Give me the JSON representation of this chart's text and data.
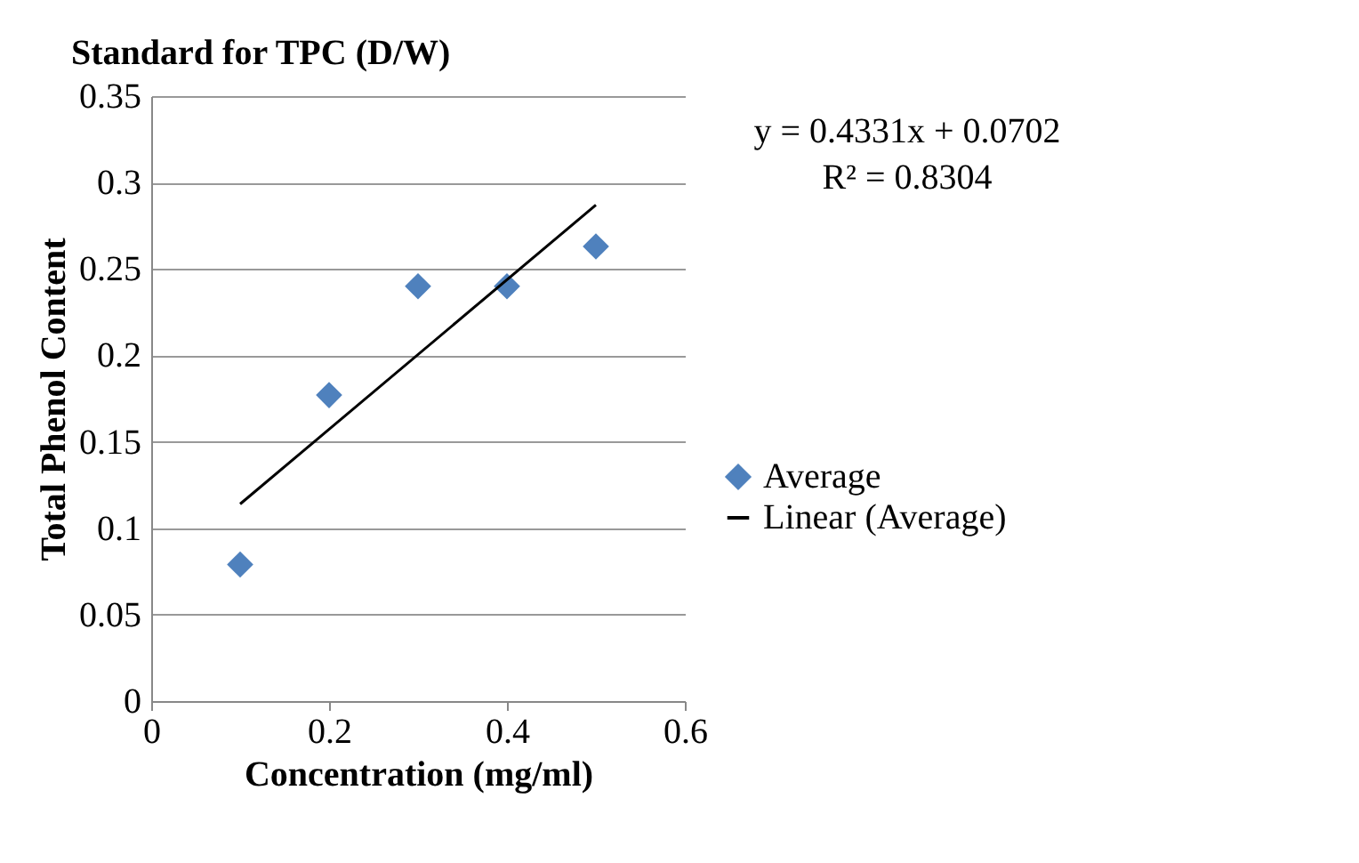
{
  "chart_data": {
    "type": "scatter",
    "title": "Standard for TPC (D/W)",
    "xlabel": "Concentration (mg/ml)",
    "ylabel": "Total Phenol Content",
    "x": [
      0.1,
      0.2,
      0.3,
      0.4,
      0.5
    ],
    "series": [
      {
        "name": "Average",
        "color": "#4f81bd",
        "marker": "diamond",
        "values": [
          0.079,
          0.177,
          0.24,
          0.24,
          0.263
        ]
      },
      {
        "name": "Linear (Average)",
        "type": "line",
        "color": "#000000",
        "x": [
          0.1,
          0.5
        ],
        "values": [
          0.114,
          0.287
        ]
      }
    ],
    "xlim": [
      0,
      0.6
    ],
    "xticks": [
      0,
      0.2,
      0.4,
      0.6
    ],
    "ylim": [
      0,
      0.35
    ],
    "yticks": [
      0,
      0.05,
      0.1,
      0.15,
      0.2,
      0.25,
      0.3,
      0.35
    ],
    "grid": "y",
    "legend": "right",
    "annotations": [
      "y = 0.4331x + 0.0702",
      "R² = 0.8304"
    ]
  }
}
